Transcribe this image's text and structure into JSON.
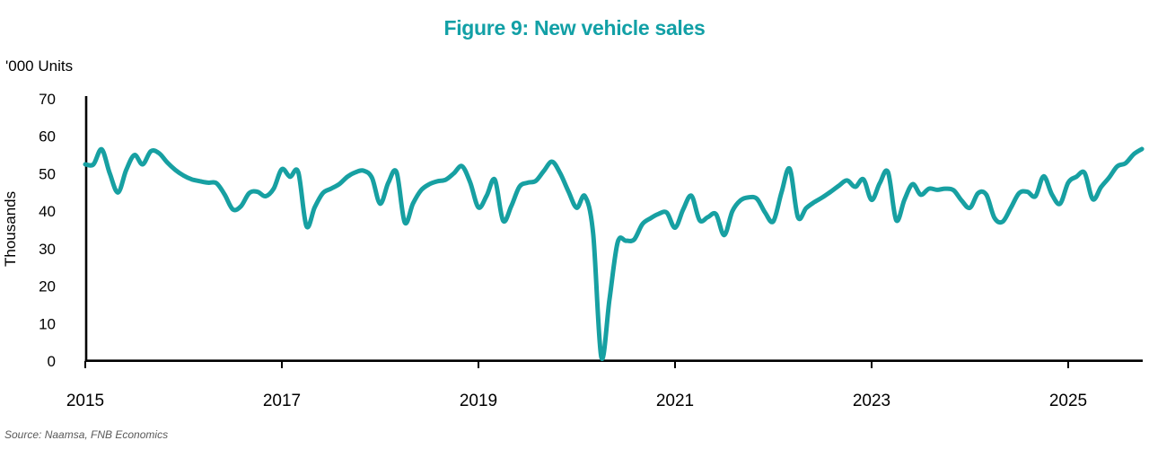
{
  "title": "Figure 9: New vehicle sales",
  "units_label": "'000 Units",
  "y_axis_title": "Thousands",
  "source": "Source: Naamsa, FNB Economics",
  "colors": {
    "accent_teal": "#12A0A6",
    "line_teal": "#17A0A2",
    "axis_black": "#000000",
    "source_gray": "#595959"
  },
  "chart_data": {
    "type": "line",
    "title": "Figure 9: New vehicle sales",
    "ylabel": "Thousands",
    "units_label": "'000 Units",
    "xlabel": "",
    "ylim": [
      0,
      70
    ],
    "yticks": [
      0,
      10,
      20,
      30,
      40,
      50,
      60,
      70
    ],
    "xticks": [
      2015,
      2017,
      2019,
      2021,
      2023,
      2025
    ],
    "x_start": "2015-01",
    "x_end": "2025-10",
    "frequency": "monthly",
    "grid": false,
    "legend": "none",
    "series": [
      {
        "name": "New vehicle sales ('000 units)",
        "values": [
          52.5,
          52.5,
          56.5,
          50,
          45,
          51,
          55,
          52.5,
          56,
          55.5,
          53,
          51,
          49.5,
          48.5,
          48,
          47.6,
          47.5,
          44.5,
          40.5,
          41.3,
          44.8,
          45.2,
          44,
          46,
          51.2,
          49.2,
          50.4,
          36,
          41,
          44.8,
          46,
          47.2,
          49.2,
          50.4,
          50.8,
          48.9,
          42,
          47.6,
          50.4,
          37,
          42,
          45.6,
          47.2,
          48,
          48.4,
          50.1,
          52,
          47.6,
          41,
          44.1,
          48.4,
          37.5,
          41.3,
          46.5,
          47.6,
          48.1,
          50.8,
          53.2,
          50,
          45.2,
          40.9,
          44,
          34,
          1,
          16.5,
          31.7,
          32.1,
          32.4,
          36.5,
          38.1,
          39.3,
          39.6,
          35.6,
          40.5,
          44.1,
          37.6,
          38.4,
          39.2,
          33.6,
          40,
          42.9,
          43.7,
          43.3,
          39.6,
          37.3,
          45,
          51.3,
          38.4,
          40.8,
          42.4,
          43.7,
          45.2,
          46.8,
          48.2,
          46.5,
          48.5,
          43,
          47.5,
          50.4,
          37.6,
          43,
          47.2,
          44.4,
          46,
          45.7,
          46,
          45.6,
          42.8,
          40.9,
          44.8,
          44.4,
          38.2,
          37.2,
          40.9,
          44.8,
          45.2,
          44,
          49.3,
          44.5,
          42,
          47.6,
          49.2,
          50.2,
          43.2,
          46.4,
          49,
          52,
          52.8,
          55.2,
          56.6
        ]
      }
    ]
  }
}
